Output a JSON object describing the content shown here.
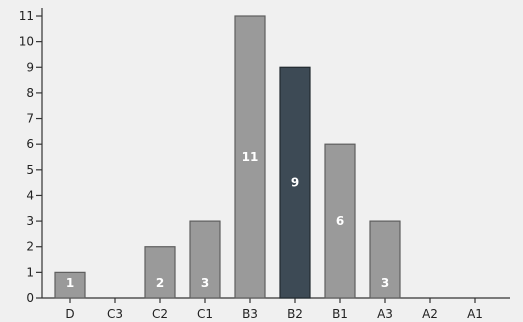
{
  "chart_data": {
    "type": "bar",
    "categories": [
      "D",
      "C3",
      "C2",
      "C1",
      "B3",
      "B2",
      "B1",
      "A3",
      "A2",
      "A1"
    ],
    "values": [
      1,
      0,
      2,
      3,
      11,
      9,
      6,
      3,
      0,
      0
    ],
    "value_labels": [
      "1",
      "",
      "2",
      "3",
      "11",
      "9",
      "6",
      "3",
      "",
      ""
    ],
    "highlight_category": "B2",
    "ylim": [
      0,
      11
    ],
    "yticks": [
      0,
      1,
      2,
      3,
      4,
      5,
      6,
      7,
      8,
      9,
      10,
      11
    ],
    "grid": false,
    "colors": {
      "bar": "#9a9a9a",
      "bar_stroke": "#5e5e5e",
      "highlight": "#3d4a55",
      "axis": "#333333",
      "background": "#f0f0f0"
    }
  }
}
